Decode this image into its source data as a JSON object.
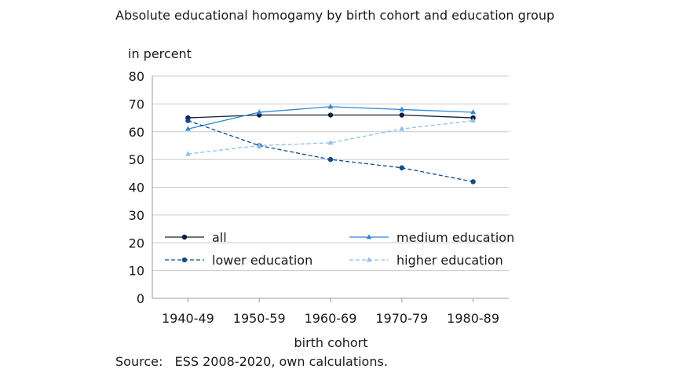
{
  "chart_data": {
    "type": "line",
    "title": "Absolute educational homogamy by birth cohort and education group",
    "ylabel": "in percent",
    "xlabel": "birth cohort",
    "categories": [
      "1940-49",
      "1950-59",
      "1960-69",
      "1970-79",
      "1980-89"
    ],
    "yticks": [
      0,
      10,
      20,
      30,
      40,
      50,
      60,
      70,
      80
    ],
    "ylim": [
      0,
      80
    ],
    "grid": "horizontal",
    "legend_position": "inside-bottom",
    "series": [
      {
        "name": "all",
        "values": [
          65,
          66,
          66,
          66,
          65
        ],
        "color": "#0d1e3c",
        "dash": "solid",
        "marker": "circle"
      },
      {
        "name": "medium education",
        "values": [
          61,
          67,
          69,
          68,
          67
        ],
        "color": "#2e86d4",
        "dash": "solid",
        "marker": "triangle"
      },
      {
        "name": "lower education",
        "values": [
          64,
          55,
          50,
          47,
          42
        ],
        "color": "#0f4c8a",
        "dash": "dashed",
        "marker": "circle"
      },
      {
        "name": "higher education",
        "values": [
          52,
          55,
          56,
          61,
          64
        ],
        "color": "#8cc1ec",
        "dash": "dashed",
        "marker": "triangle"
      }
    ],
    "source": "Source:   ESS 2008-2020, own calculations."
  }
}
